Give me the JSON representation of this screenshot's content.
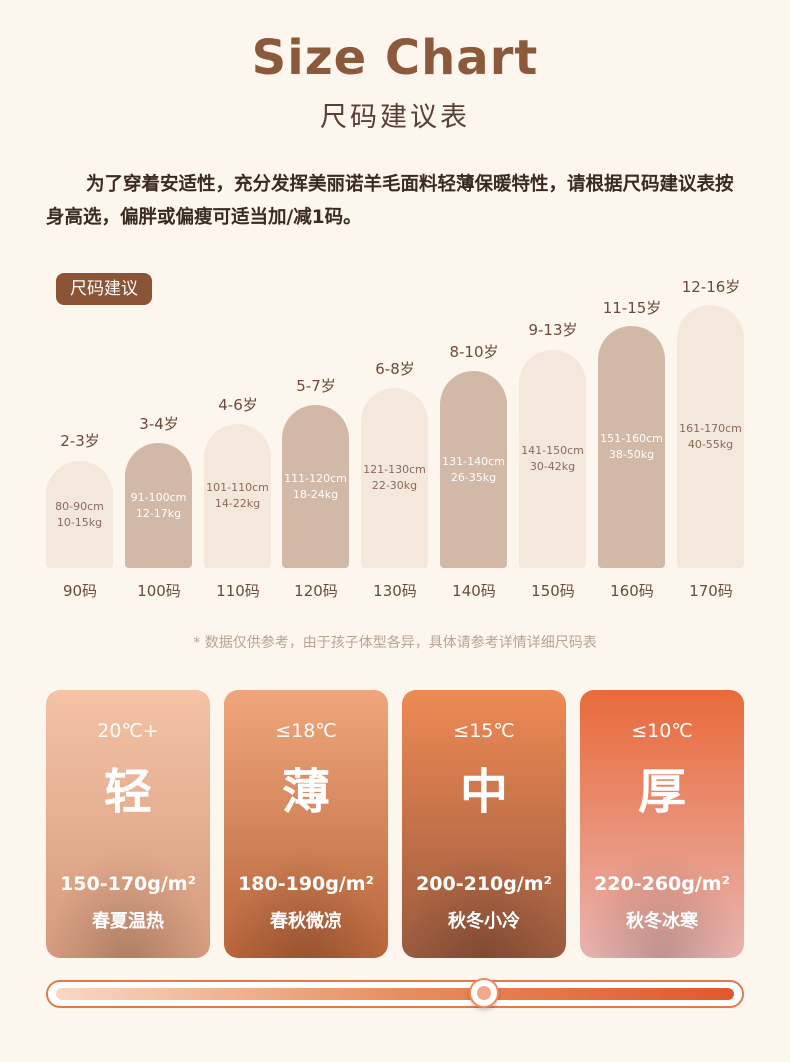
{
  "header": {
    "title": "Size Chart",
    "subtitle": "尺码建议表"
  },
  "intro": "为了穿着安适性，充分发挥美丽诺羊毛面料轻薄保暖特性，请根据尺码建议表按身高选，偏胖或偏瘦可适当加/减1码。",
  "badge": "尺码建议",
  "sizes": [
    {
      "age": "2-3岁",
      "height": "80-90cm",
      "weight": "10-15kg",
      "size": "90码"
    },
    {
      "age": "3-4岁",
      "height": "91-100cm",
      "weight": "12-17kg",
      "size": "100码"
    },
    {
      "age": "4-6岁",
      "height": "101-110cm",
      "weight": "14-22kg",
      "size": "110码"
    },
    {
      "age": "5-7岁",
      "height": "111-120cm",
      "weight": "18-24kg",
      "size": "120码"
    },
    {
      "age": "6-8岁",
      "height": "121-130cm",
      "weight": "22-30kg",
      "size": "130码"
    },
    {
      "age": "8-10岁",
      "height": "131-140cm",
      "weight": "26-35kg",
      "size": "140码"
    },
    {
      "age": "9-13岁",
      "height": "141-150cm",
      "weight": "30-42kg",
      "size": "150码"
    },
    {
      "age": "11-15岁",
      "height": "151-160cm",
      "weight": "38-50kg",
      "size": "160码"
    },
    {
      "age": "12-16岁",
      "height": "161-170cm",
      "weight": "40-55kg",
      "size": "170码"
    }
  ],
  "note": "* 数据仅供参考，由于孩子体型各异，具体请参考详情详细尺码表",
  "cards": [
    {
      "temp": "20℃+",
      "char": "轻",
      "gsm": "150-170g/m²",
      "season": "春夏温热",
      "color_top": "#f4c2a5",
      "color_bottom": "#d59a7c"
    },
    {
      "temp": "≤18℃",
      "char": "薄",
      "gsm": "180-190g/m²",
      "season": "春秋微凉",
      "color_top": "#f0a67c",
      "color_bottom": "#b8653a"
    },
    {
      "temp": "≤15℃",
      "char": "中",
      "gsm": "200-210g/m²",
      "season": "秋冬小冷",
      "color_top": "#ee8a55",
      "color_bottom": "#9a5a3e"
    },
    {
      "temp": "≤10℃",
      "char": "厚",
      "gsm": "220-260g/m²",
      "season": "秋冬冰寒",
      "color_top": "#e96a3a",
      "color_bottom": "#e9b5b0"
    }
  ],
  "thickness_level": 0.63
}
